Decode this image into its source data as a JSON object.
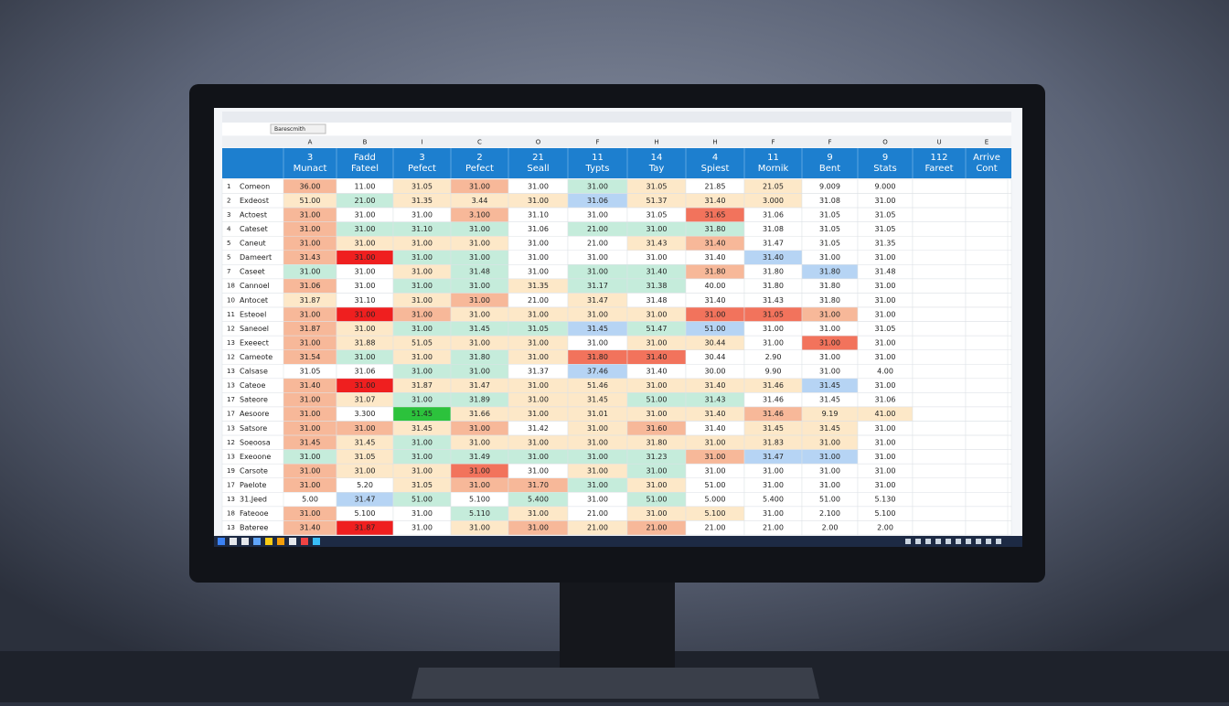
{
  "window": {
    "address": "Barescmith"
  },
  "sheet": {
    "column_letters": [
      "A",
      "B",
      "I",
      "C",
      "O",
      "F",
      "H",
      "H",
      "F",
      "F",
      "O",
      "U",
      "E"
    ],
    "headers": [
      [
        "3",
        "Munact"
      ],
      [
        "Fadd",
        "Fateel"
      ],
      [
        "3",
        "Pefect"
      ],
      [
        "2",
        "Pefect"
      ],
      [
        "21",
        "Seall"
      ],
      [
        "11",
        "Typts"
      ],
      [
        "14",
        "Tay"
      ],
      [
        "4",
        "Spiest"
      ],
      [
        "11",
        "Mornik"
      ],
      [
        "9",
        "Bent"
      ],
      [
        "9",
        "Stats"
      ],
      [
        "112",
        "Fareet"
      ],
      [
        "Arrive",
        "Cont"
      ]
    ],
    "rows": [
      {
        "num": "1",
        "name": "Comeon",
        "fill": "owyowgywyww",
        "cells": [
          "36.00",
          "11.00",
          "31.05",
          "31.00",
          "31.00",
          "31.00",
          "31.05",
          "21.85",
          "21.05",
          "9.009",
          "9.000"
        ]
      },
      {
        "num": "2",
        "name": "Exdeost",
        "fill": "ygyyybyyyww",
        "cells": [
          "51.00",
          "21.00",
          "31.35",
          "3.44",
          "31.00",
          "31.06",
          "51.37",
          "31.40",
          "3.000",
          "31.08",
          "31.00"
        ]
      },
      {
        "num": "3",
        "name": "Actoest",
        "fill": "owwowwwrwww",
        "cells": [
          "31.00",
          "31.00",
          "31.00",
          "3.100",
          "31.10",
          "31.00",
          "31.05",
          "31.65",
          "31.06",
          "31.05",
          "31.05"
        ]
      },
      {
        "num": "4",
        "name": "Cateset",
        "fill": "ogggwgggwww",
        "cells": [
          "31.00",
          "31.00",
          "31.10",
          "31.00",
          "31.06",
          "21.00",
          "31.00",
          "31.80",
          "31.08",
          "31.05",
          "31.05"
        ]
      },
      {
        "num": "5",
        "name": "Caneut",
        "fill": "oyyywwyowww",
        "cells": [
          "31.00",
          "31.00",
          "31.00",
          "31.00",
          "31.00",
          "21.00",
          "31.43",
          "31.40",
          "31.47",
          "31.05",
          "31.35"
        ]
      },
      {
        "num": "5",
        "name": "Dameert",
        "fill": "oRggwwwwbww",
        "cells": [
          "31.43",
          "31.00",
          "31.00",
          "31.00",
          "31.00",
          "31.00",
          "31.00",
          "31.40",
          "31.40",
          "31.00",
          "31.00"
        ]
      },
      {
        "num": "7",
        "name": "Caseet",
        "fill": "gwygwggowbw",
        "cells": [
          "31.00",
          "31.00",
          "31.00",
          "31.48",
          "31.00",
          "31.00",
          "31.40",
          "31.80",
          "31.80",
          "31.80",
          "31.48"
        ]
      },
      {
        "num": "18",
        "name": "Cannoel",
        "fill": "owggyggwwww",
        "cells": [
          "31.06",
          "31.00",
          "31.00",
          "31.00",
          "31.35",
          "31.17",
          "31.38",
          "40.00",
          "31.80",
          "31.80",
          "31.00"
        ]
      },
      {
        "num": "10",
        "name": "Antocet",
        "fill": "ywyowywwwww",
        "cells": [
          "31.87",
          "31.10",
          "31.00",
          "31.00",
          "21.00",
          "31.47",
          "31.48",
          "31.40",
          "31.43",
          "31.80",
          "31.00"
        ]
      },
      {
        "num": "11",
        "name": "Esteoel",
        "fill": "oRoyyyyrrow",
        "cells": [
          "31.00",
          "31.00",
          "31.00",
          "31.00",
          "31.00",
          "31.00",
          "31.00",
          "31.00",
          "31.05",
          "31.00",
          "31.00"
        ]
      },
      {
        "num": "12",
        "name": "Saneoel",
        "fill": "oygggbgbwww",
        "cells": [
          "31.87",
          "31.00",
          "31.00",
          "31.45",
          "31.05",
          "31.45",
          "51.47",
          "51.00",
          "31.00",
          "31.00",
          "31.05"
        ]
      },
      {
        "num": "13",
        "name": "Exeeect",
        "fill": "oyyyywyywrw",
        "cells": [
          "31.00",
          "31.88",
          "51.05",
          "31.00",
          "31.00",
          "31.00",
          "31.00",
          "30.44",
          "31.00",
          "31.00",
          "31.00"
        ]
      },
      {
        "num": "12",
        "name": "Cameote",
        "fill": "ogygyrrwwww",
        "cells": [
          "31.54",
          "31.00",
          "31.00",
          "31.80",
          "31.00",
          "31.80",
          "31.40",
          "30.44",
          "2.90",
          "31.00",
          "31.00"
        ]
      },
      {
        "num": "13",
        "name": "Calsase",
        "fill": "wwggwbwwwww",
        "cells": [
          "31.05",
          "31.06",
          "31.00",
          "31.00",
          "31.37",
          "37.46",
          "31.40",
          "30.00",
          "9.90",
          "31.00",
          "4.00"
        ]
      },
      {
        "num": "13",
        "name": "Cateoe",
        "fill": "oRyyyyyyybw",
        "cells": [
          "31.40",
          "31.00",
          "31.87",
          "31.47",
          "31.00",
          "51.46",
          "31.00",
          "31.40",
          "31.46",
          "31.45",
          "31.00"
        ]
      },
      {
        "num": "17",
        "name": "Sateore",
        "fill": "oyggyyggwww",
        "cells": [
          "31.00",
          "31.07",
          "31.00",
          "31.89",
          "31.00",
          "31.45",
          "51.00",
          "31.43",
          "31.46",
          "31.45",
          "31.06"
        ]
      },
      {
        "num": "17",
        "name": "Aesoore",
        "fill": "owGyyyyyoyy",
        "cells": [
          "31.00",
          "3.300",
          "51.45",
          "31.66",
          "31.00",
          "31.01",
          "31.00",
          "31.40",
          "31.46",
          "9.19",
          "41.00"
        ]
      },
      {
        "num": "13",
        "name": "Satsore",
        "fill": "ooyowyowyyw",
        "cells": [
          "31.00",
          "31.00",
          "31.45",
          "31.00",
          "31.42",
          "31.00",
          "31.60",
          "31.40",
          "31.45",
          "31.45",
          "31.00"
        ]
      },
      {
        "num": "12",
        "name": "Soeoosa",
        "fill": "oygyyyyyyyw",
        "cells": [
          "31.45",
          "31.45",
          "31.00",
          "31.00",
          "31.00",
          "31.00",
          "31.80",
          "31.00",
          "31.83",
          "31.00",
          "31.00"
        ]
      },
      {
        "num": "13",
        "name": "Exeoone",
        "fill": "gygggggobbw",
        "cells": [
          "31.00",
          "31.05",
          "31.00",
          "31.49",
          "31.00",
          "31.00",
          "31.23",
          "31.00",
          "31.47",
          "31.00",
          "31.00"
        ]
      },
      {
        "num": "19",
        "name": "Carsote",
        "fill": "oyyrwygwwww",
        "cells": [
          "31.00",
          "31.00",
          "31.00",
          "31.00",
          "31.00",
          "31.00",
          "31.00",
          "31.00",
          "31.00",
          "31.00",
          "31.00"
        ]
      },
      {
        "num": "17",
        "name": "Paelote",
        "fill": "owyoogywwww",
        "cells": [
          "31.00",
          "5.20",
          "31.05",
          "31.00",
          "31.70",
          "31.00",
          "31.00",
          "51.00",
          "31.00",
          "31.00",
          "31.00"
        ]
      },
      {
        "num": "13",
        "name": "31.Jeed",
        "fill": "wbgwgwgwwww",
        "cells": [
          "5.00",
          "31.47",
          "51.00",
          "5.100",
          "5.400",
          "31.00",
          "51.00",
          "5.000",
          "5.400",
          "51.00",
          "5.130"
        ]
      },
      {
        "num": "18",
        "name": "Fateooe",
        "fill": "owwgywyywww",
        "cells": [
          "31.00",
          "5.100",
          "31.00",
          "5.110",
          "31.00",
          "21.00",
          "31.00",
          "5.100",
          "31.00",
          "2.100",
          "5.100"
        ]
      },
      {
        "num": "13",
        "name": "Bateree",
        "fill": "oRwyoyowwww",
        "cells": [
          "31.40",
          "31.87",
          "31.00",
          "31.00",
          "31.00",
          "21.00",
          "21.00",
          "21.00",
          "21.00",
          "2.00",
          "2.00"
        ]
      }
    ]
  }
}
